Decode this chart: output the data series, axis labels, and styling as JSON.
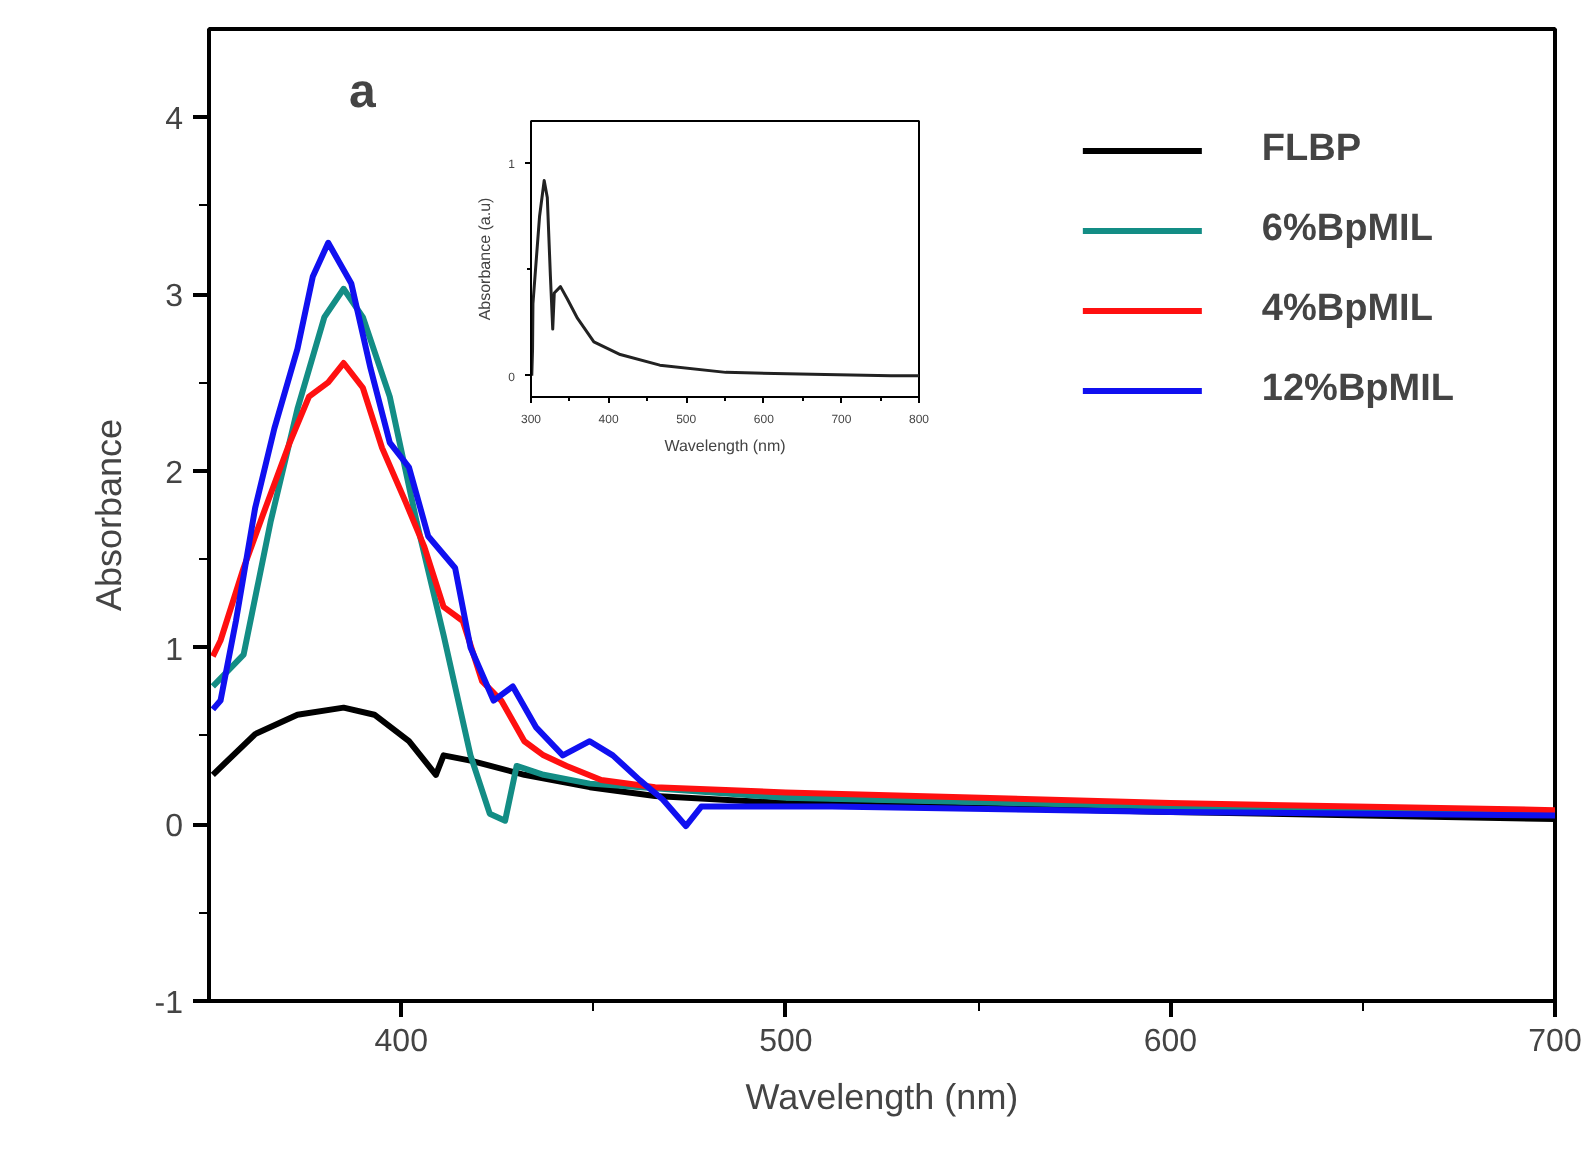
{
  "chart_data": [
    {
      "type": "line",
      "xlabel": "Wavelength (nm)",
      "ylabel": "Absorbance",
      "xlim": [
        350,
        700
      ],
      "ylim": [
        -1,
        4.5
      ],
      "xticks": [
        400,
        500,
        600,
        700
      ],
      "yticks": [
        -1,
        0,
        1,
        2,
        3,
        4
      ],
      "legend": "top right",
      "annotations": [
        "a"
      ],
      "series": [
        {
          "name": "FLBP",
          "color": "#000000",
          "x": [
            351,
            362,
            373,
            385,
            393,
            402,
            409,
            411,
            418,
            432,
            449,
            466,
            500,
            600,
            700
          ],
          "values": [
            0.28,
            0.51,
            0.62,
            0.66,
            0.62,
            0.47,
            0.28,
            0.39,
            0.36,
            0.28,
            0.21,
            0.16,
            0.12,
            0.07,
            0.03
          ]
        },
        {
          "name": "6%BpMIL",
          "color": "#138d85",
          "x": [
            351,
            359,
            366,
            373,
            380,
            385,
            390,
            397,
            404,
            411,
            418,
            423,
            427,
            430,
            437,
            449,
            500,
            600,
            700
          ],
          "values": [
            0.78,
            0.96,
            1.71,
            2.35,
            2.87,
            3.03,
            2.87,
            2.42,
            1.71,
            1.07,
            0.39,
            0.06,
            0.02,
            0.33,
            0.28,
            0.23,
            0.15,
            0.1,
            0.06
          ]
        },
        {
          "name": "4%BpMIL",
          "color": "#ff1010",
          "x": [
            351,
            353,
            359,
            364,
            371,
            376,
            381,
            385,
            390,
            395,
            401,
            406,
            411,
            416,
            421,
            426,
            432,
            437,
            443,
            452,
            466,
            500,
            600,
            700
          ],
          "values": [
            0.95,
            1.04,
            1.45,
            1.75,
            2.16,
            2.42,
            2.5,
            2.61,
            2.47,
            2.13,
            1.83,
            1.57,
            1.23,
            1.15,
            0.81,
            0.7,
            0.47,
            0.39,
            0.33,
            0.25,
            0.21,
            0.18,
            0.12,
            0.08
          ]
        },
        {
          "name": "12%BpMIL",
          "color": "#1010f0",
          "x": [
            351,
            353,
            357,
            362,
            367,
            373,
            377,
            381,
            387,
            392,
            397,
            402,
            407,
            414,
            418,
            424,
            429,
            435,
            442,
            449,
            455,
            462,
            468,
            474,
            478,
            512,
            600,
            700
          ],
          "values": [
            0.65,
            0.7,
            1.15,
            1.79,
            2.24,
            2.69,
            3.1,
            3.29,
            3.06,
            2.58,
            2.16,
            2.02,
            1.63,
            1.45,
            1.0,
            0.7,
            0.78,
            0.55,
            0.39,
            0.47,
            0.39,
            0.25,
            0.14,
            -0.01,
            0.1,
            0.1,
            0.07,
            0.05
          ]
        }
      ]
    },
    {
      "type": "line",
      "xlabel": "Wavelength (nm)",
      "ylabel": "Absorbance (a.u)",
      "xlim": [
        300,
        800
      ],
      "ylim": [
        -0.1,
        1.2
      ],
      "xticks": [
        300,
        400,
        500,
        600,
        700,
        800
      ],
      "yticks": [
        0,
        1
      ],
      "series": [
        {
          "color": "#222222",
          "x": [
            301,
            302,
            302.5,
            311,
            317,
            321,
            325,
            328,
            330,
            338,
            347,
            360,
            381,
            415,
            466,
            551,
            679,
            764,
            800
          ],
          "values": [
            0.0,
            0.125,
            0.34,
            0.75,
            0.92,
            0.84,
            0.47,
            0.22,
            0.39,
            0.42,
            0.36,
            0.27,
            0.16,
            0.1,
            0.05,
            0.016,
            0.006,
            0.0,
            0.0
          ]
        }
      ]
    }
  ]
}
